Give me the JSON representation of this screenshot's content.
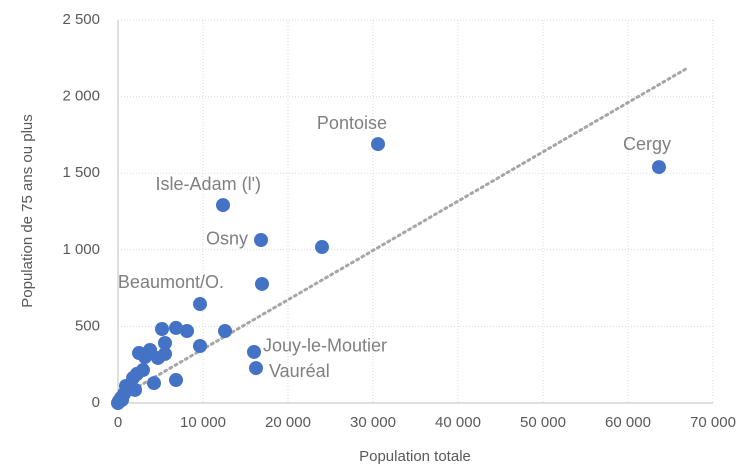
{
  "chart_data": {
    "type": "scatter",
    "xlabel": "Population totale",
    "ylabel": "Population de 75 ans ou plus",
    "color": "#4472c4",
    "grid": true,
    "x": [
      63647,
      30588,
      12353,
      16824,
      9647,
      16000,
      16235,
      24000,
      16941,
      12588,
      9647,
      6824,
      8118,
      5176,
      5529,
      5529,
      4706,
      3765,
      2471,
      3176,
      6824,
      4235,
      2235,
      2941,
      1765,
      1412,
      941,
      2000,
      706,
      353,
      118,
      470,
      0
    ],
    "y": [
      1540,
      1690,
      1292,
      1064,
      646,
      333,
      228,
      1018,
      777,
      470,
      372,
      490,
      470,
      483,
      392,
      320,
      294,
      346,
      326,
      300,
      150,
      130,
      190,
      215,
      163,
      104,
      111,
      85,
      59,
      33,
      13,
      20,
      0
    ],
    "labels": [
      "Cergy",
      "Pontoise",
      "Isle-Adam (l')",
      "Osny",
      "Beaumont/O.",
      "Jouy-le-Moutier",
      "Vauréal",
      null,
      null,
      null,
      null,
      null,
      null,
      null,
      null,
      null,
      null,
      null,
      null,
      null,
      null,
      null,
      null,
      null,
      null,
      null,
      null,
      null,
      null,
      null,
      null,
      null,
      null
    ],
    "trendline": {
      "x": [
        0,
        66800
      ],
      "y": [
        30,
        2180
      ]
    },
    "xlim": [
      0,
      70000
    ],
    "ylim": [
      0,
      2500
    ],
    "xticks": [
      0,
      {
        "value": 10000,
        "label": "10 000"
      },
      {
        "value": 20000,
        "label": "20 000"
      },
      {
        "value": 30000,
        "label": "30 000"
      },
      {
        "value": 40000,
        "label": "40 000"
      },
      {
        "value": 50000,
        "label": "50 000"
      },
      {
        "value": 60000,
        "label": "60 000"
      },
      {
        "value": 70000,
        "label": "70 000"
      }
    ],
    "yticks": [
      0,
      500,
      {
        "value": 1000,
        "label": "1 000"
      },
      {
        "value": 1500,
        "label": "1 500"
      },
      {
        "value": 2000,
        "label": "2 000"
      },
      {
        "value": 2500,
        "label": "2 500"
      }
    ]
  }
}
